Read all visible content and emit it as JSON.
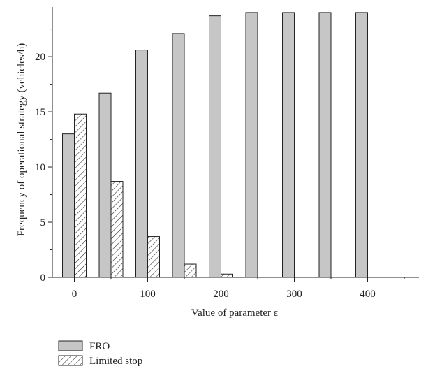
{
  "chart_data": {
    "type": "bar",
    "title": "",
    "xlabel": "Value of parameter ε",
    "ylabel": "Frequency of operational strategy (vehicles/h)",
    "x": [
      0,
      50,
      100,
      150,
      200,
      250,
      300,
      350,
      400
    ],
    "x_ticks": [
      0,
      100,
      200,
      300,
      400
    ],
    "x_tick_labels": [
      "0",
      "100",
      "200",
      "300",
      "400"
    ],
    "y_ticks": [
      0,
      5,
      10,
      15,
      20
    ],
    "y_tick_labels": [
      "0",
      "5",
      "10",
      "15",
      "20"
    ],
    "xlim": [
      -30,
      470
    ],
    "ylim": [
      0,
      24.5
    ],
    "grid": false,
    "legend_position": "bottom-left",
    "series": [
      {
        "name": "FRO",
        "values": [
          13.0,
          16.7,
          20.6,
          22.1,
          23.7,
          24.0,
          24.0,
          24.0,
          24.0
        ],
        "fill": "#c6c6c6",
        "pattern": "solid"
      },
      {
        "name": "Limited stop",
        "values": [
          14.8,
          8.7,
          3.7,
          1.2,
          0.3,
          0,
          0,
          0,
          0
        ],
        "fill": "#ffffff",
        "pattern": "diagonal-hatch"
      }
    ]
  }
}
